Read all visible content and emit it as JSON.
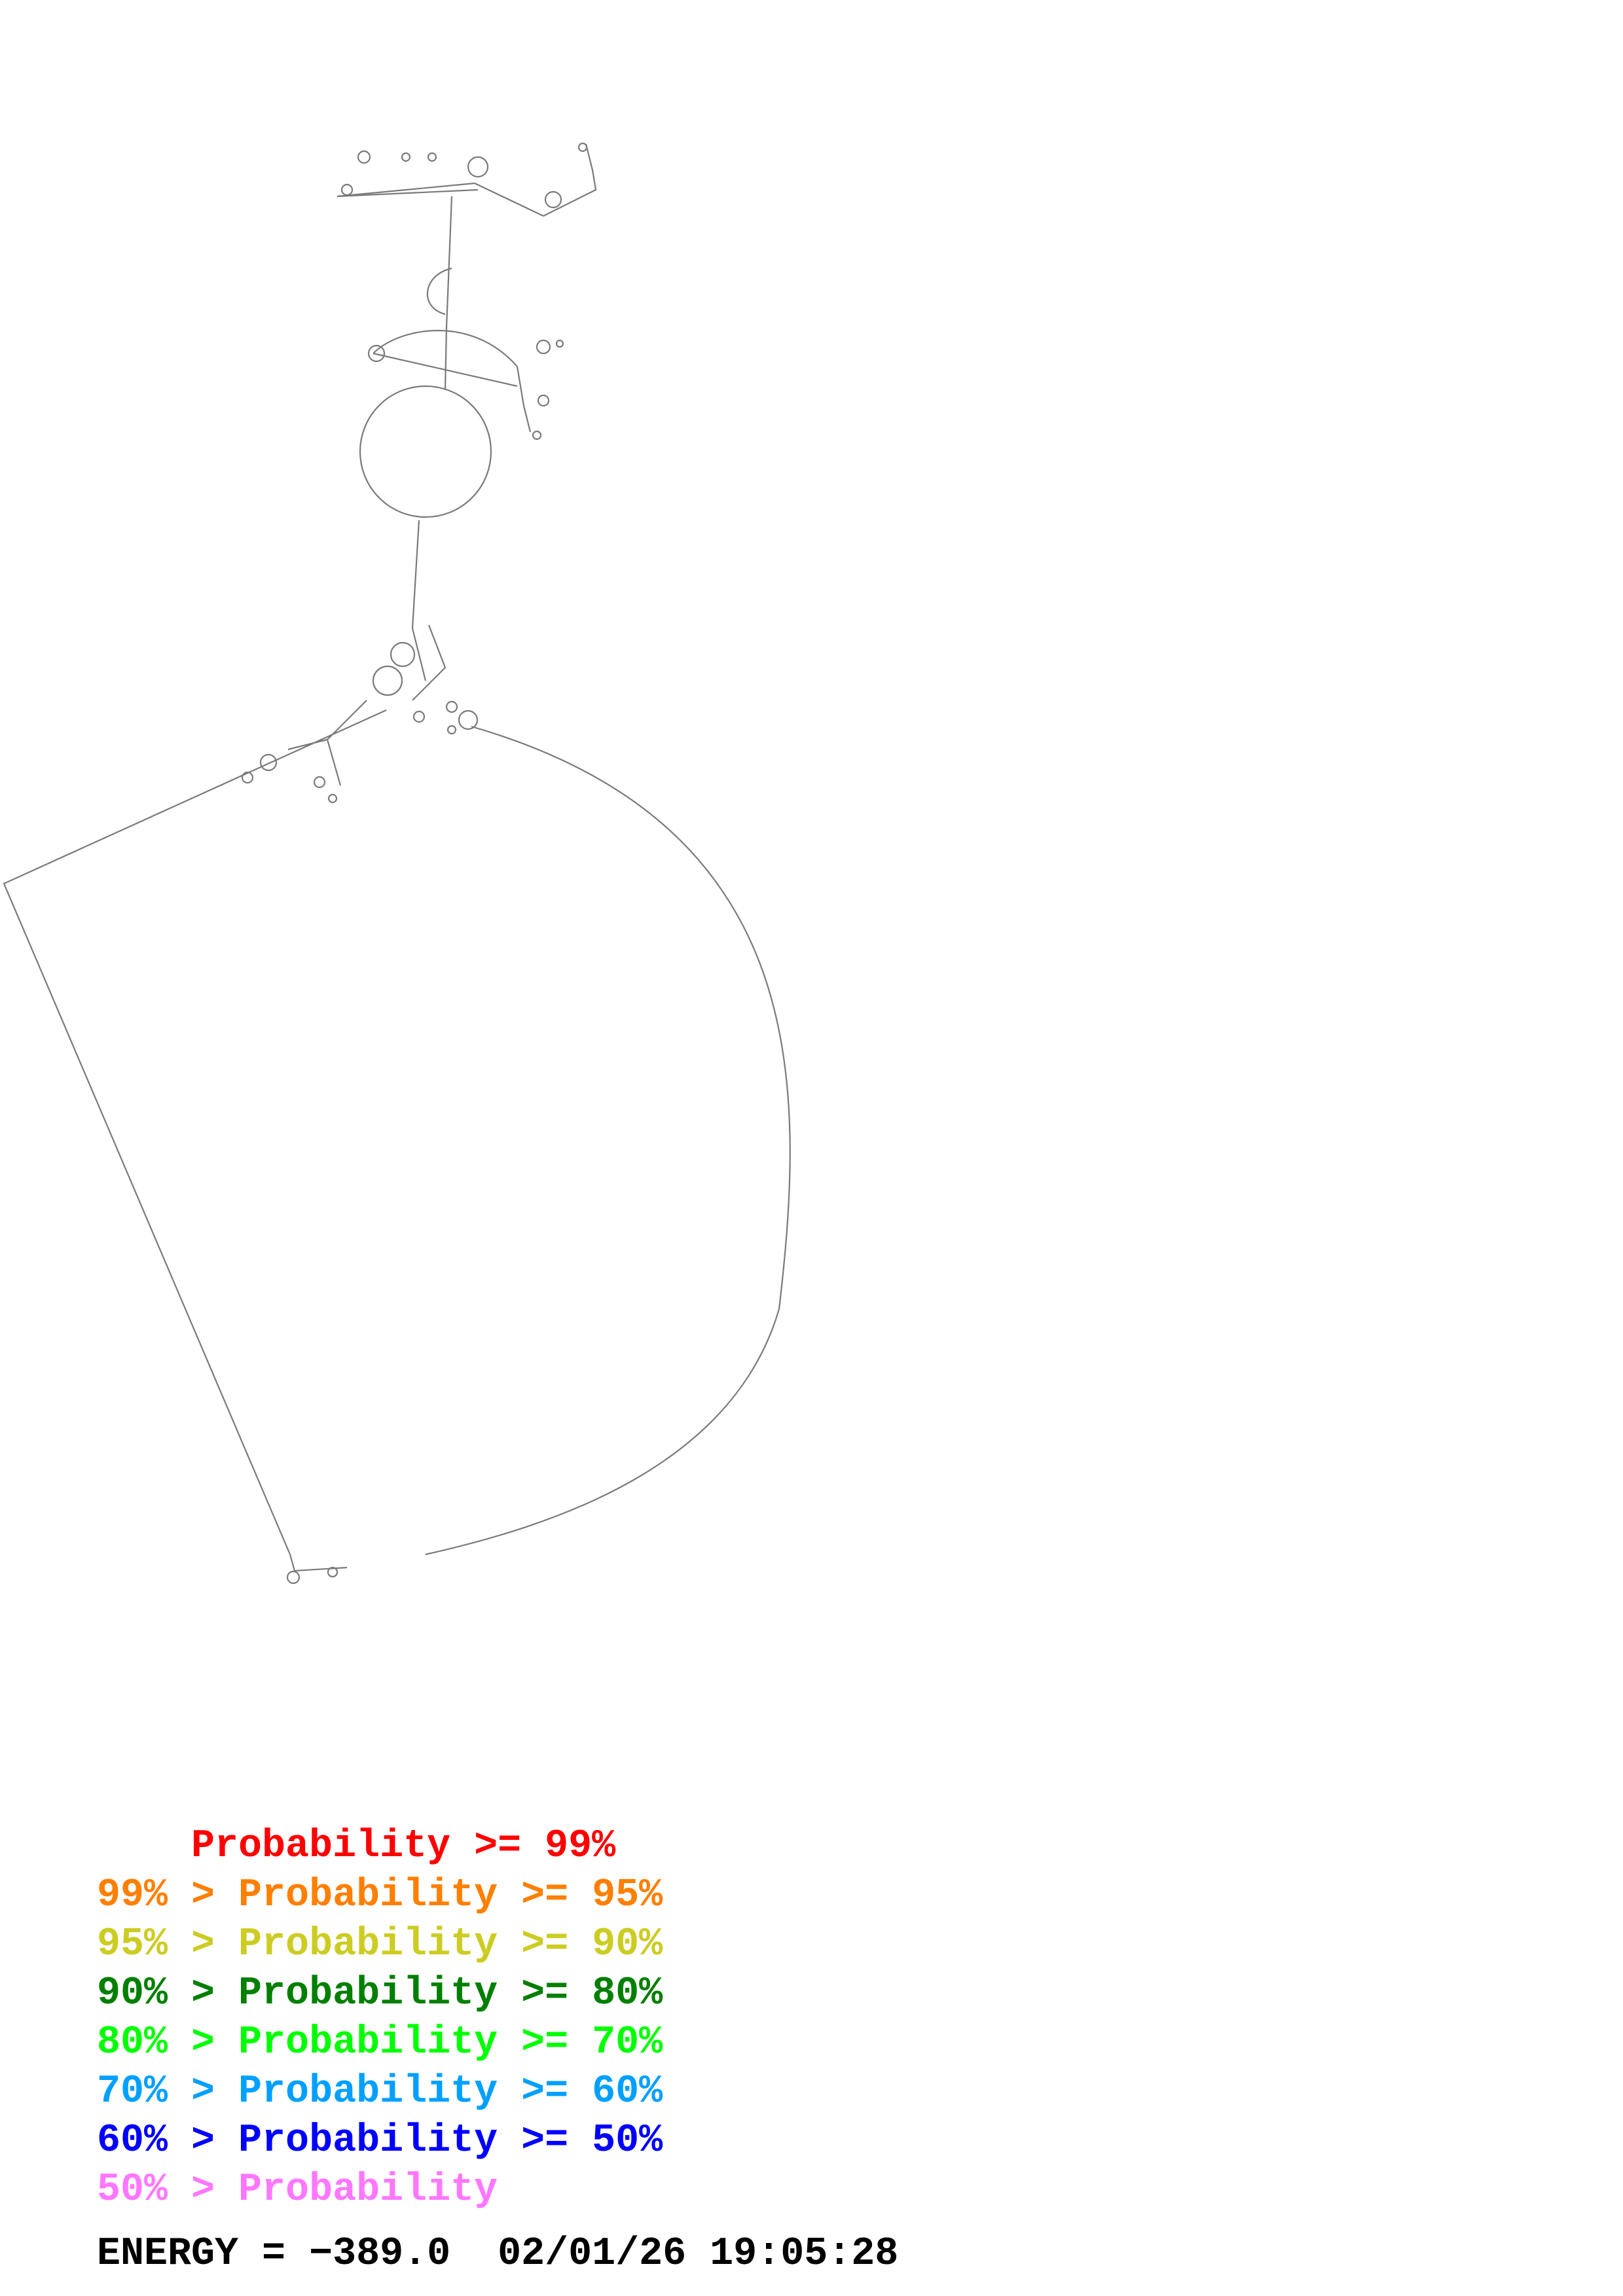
{
  "legend": [
    {
      "prefix": "    ",
      "label": "Probability >= 99%",
      "color": "#ff0000"
    },
    {
      "prefix": "99% > ",
      "label": "Probability >= 95%",
      "color": "#ff7f00"
    },
    {
      "prefix": "95% > ",
      "label": "Probability >= 90%",
      "color": "#cccc22"
    },
    {
      "prefix": "90% > ",
      "label": "Probability >= 80%",
      "color": "#007f00"
    },
    {
      "prefix": "80% > ",
      "label": "Probability >= 70%",
      "color": "#00ff00"
    },
    {
      "prefix": "70% > ",
      "label": "Probability >= 60%",
      "color": "#00a0ff"
    },
    {
      "prefix": "60% > ",
      "label": "Probability >= 50%",
      "color": "#0000ff"
    },
    {
      "prefix": "50% > ",
      "label": "Probability",
      "color": "#ff77ff"
    }
  ],
  "energy": {
    "label": "ENERGY = ",
    "value": "−389.0",
    "timestamp": "02/01/26 19:05:28"
  }
}
